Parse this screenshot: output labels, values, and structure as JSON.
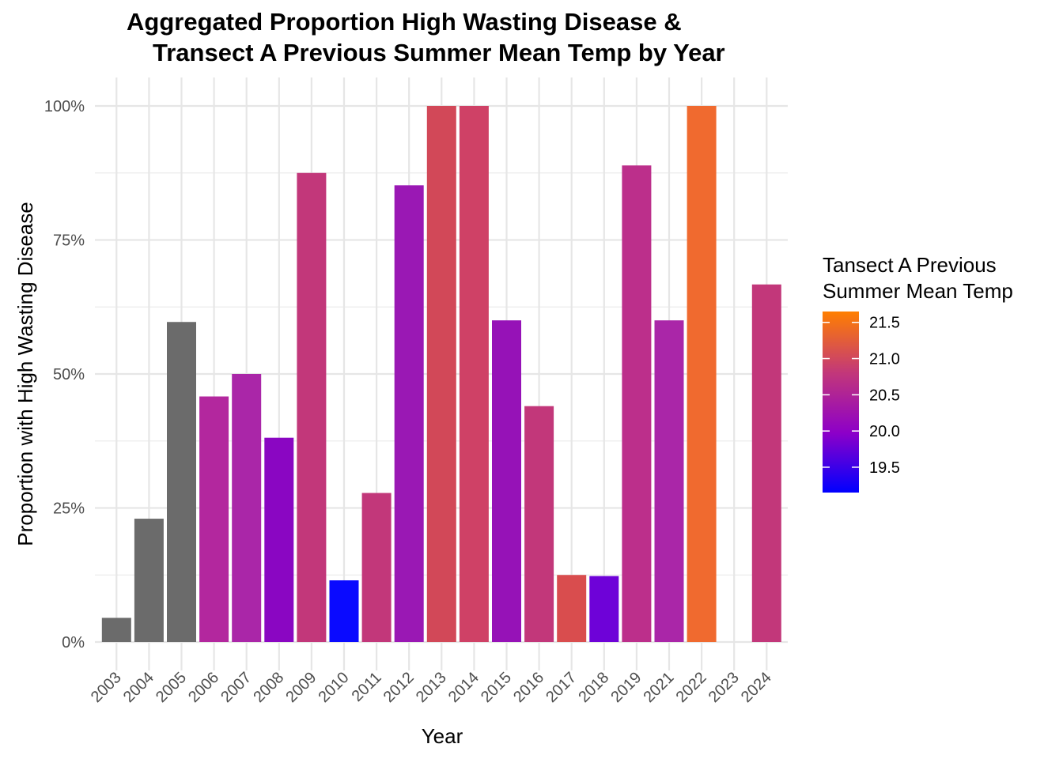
{
  "chart_data": {
    "type": "bar",
    "title_line1": "Aggregated Proportion High Wasting Disease &",
    "title_line2": "Transect A Previous Summer Mean Temp by Year",
    "xlabel": "Year",
    "ylabel": "Proportion with High Wasting Disease",
    "ylim": [
      0,
      1
    ],
    "y_ticks": [
      {
        "value": 0,
        "label": "0%"
      },
      {
        "value": 0.25,
        "label": "25%"
      },
      {
        "value": 0.5,
        "label": "50%"
      },
      {
        "value": 0.75,
        "label": "75%"
      },
      {
        "value": 1,
        "label": "100%"
      }
    ],
    "categories": [
      "2003",
      "2004",
      "2005",
      "2006",
      "2007",
      "2008",
      "2009",
      "2010",
      "2011",
      "2012",
      "2013",
      "2014",
      "2015",
      "2016",
      "2017",
      "2018",
      "2019",
      "2021",
      "2022",
      "2023",
      "2024"
    ],
    "values": [
      0.045,
      0.23,
      0.597,
      0.458,
      0.5,
      0.381,
      0.875,
      0.115,
      0.278,
      0.852,
      1.0,
      1.0,
      0.6,
      0.44,
      0.125,
      0.123,
      0.889,
      0.6,
      1.0,
      0,
      0.667
    ],
    "colors": [
      "#6b6b6b",
      "#6b6b6b",
      "#6b6b6b",
      "#b3279e",
      "#aa26a8",
      "#8a06c2",
      "#c2377a",
      "#0a0aff",
      "#c2377a",
      "#9a18b4",
      "#d24858",
      "#cf4166",
      "#9612b7",
      "#c2377a",
      "#d94d4e",
      "#6e02d8",
      "#bc2f8b",
      "#aa26a8",
      "#f06a2f",
      "#ffffff",
      "#c2377a"
    ],
    "legend": {
      "title_line1": "Tansect A Previous",
      "title_line2": "Summer Mean Temp",
      "gradient": [
        "#0000ff",
        "#8d00c8",
        "#c2377a",
        "#ff7f00"
      ],
      "ticks": [
        "19.5",
        "20.0",
        "20.5",
        "21.0",
        "21.5"
      ],
      "tick_values": [
        19.5,
        20.0,
        20.5,
        21.0,
        21.5
      ],
      "range": [
        19.15,
        21.65
      ],
      "placement": "right"
    },
    "grid": true
  }
}
